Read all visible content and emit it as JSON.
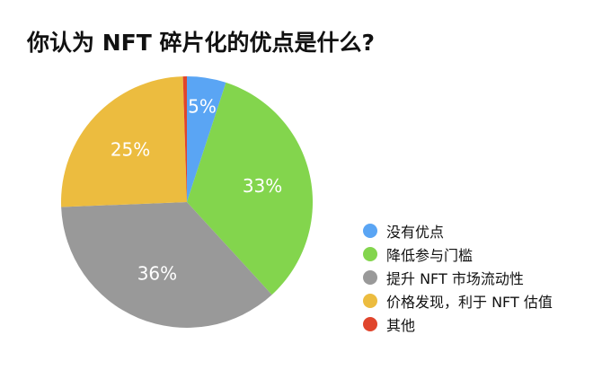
{
  "chart_data": {
    "type": "pie",
    "title": "你认为 NFT 碎片化的优点是什么?",
    "slices": [
      {
        "label": "没有优点",
        "value": 5,
        "color": "#5aa5f4",
        "text": "5%"
      },
      {
        "label": "降低参与门槛",
        "value": 33,
        "color": "#83d54d",
        "text": "33%"
      },
      {
        "label": "提升 NFT 市场流动性",
        "value": 36,
        "color": "#999999",
        "text": "36%"
      },
      {
        "label": "价格发现，利于 NFT 估值",
        "value": 25,
        "color": "#ecbc3f",
        "text": "25%"
      },
      {
        "label": "其他",
        "value": 0.5,
        "color": "#e0452c",
        "text": ""
      }
    ],
    "legend_position": "right"
  }
}
